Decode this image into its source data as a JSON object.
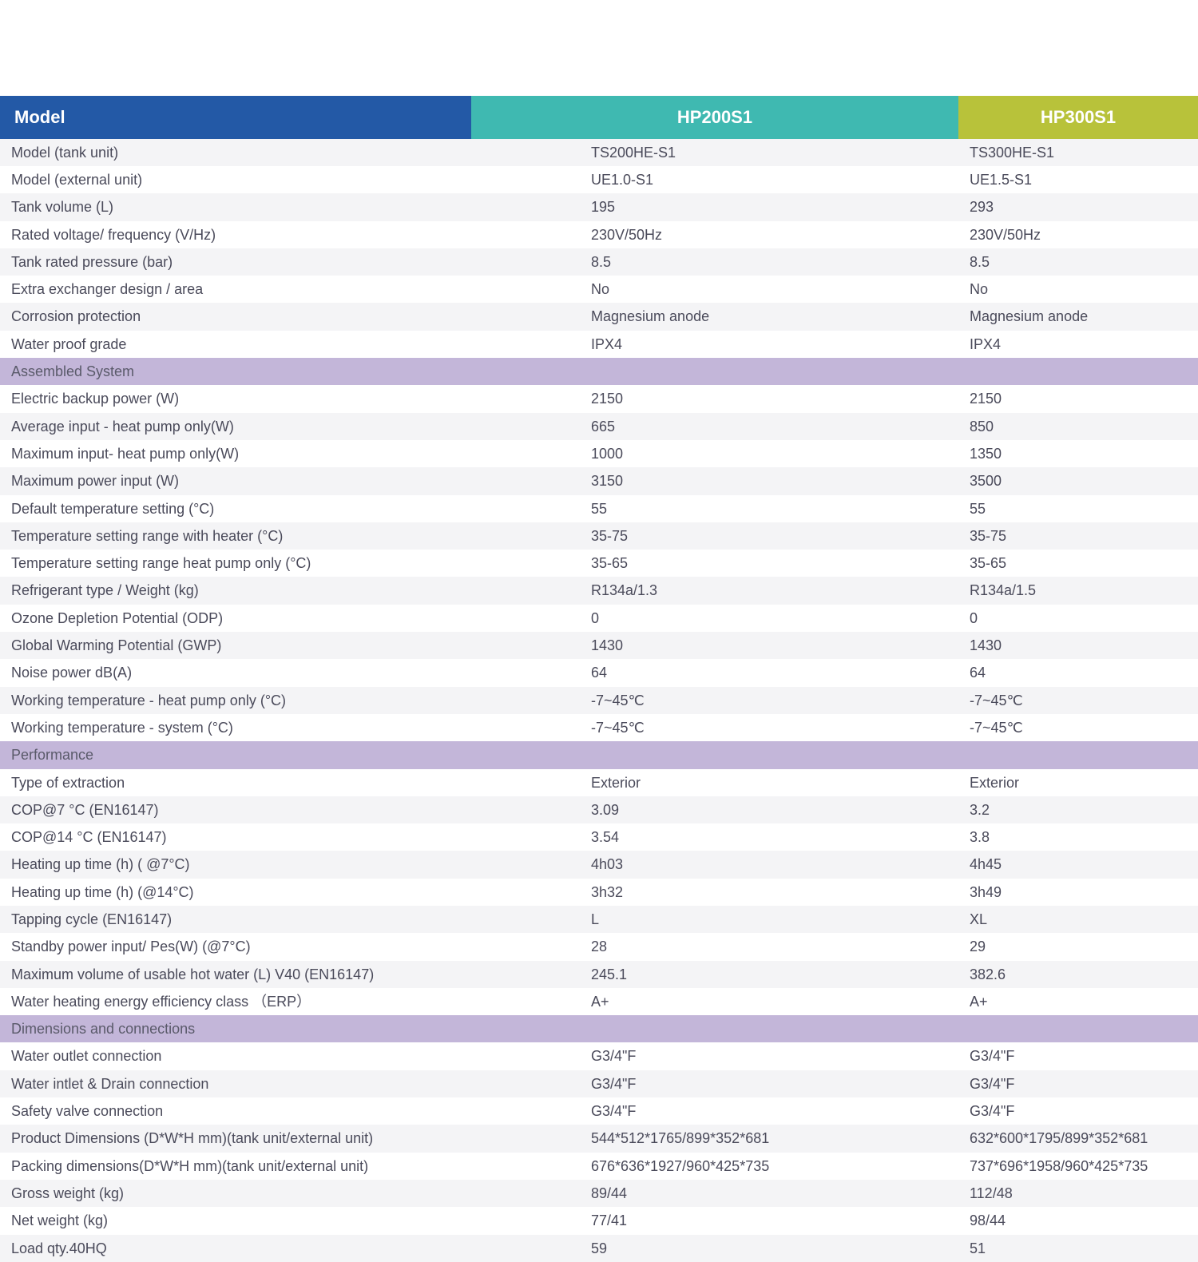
{
  "header": {
    "c0": "Model",
    "c1": "HP200S1",
    "c2": "HP300S1"
  },
  "colors": {
    "header0": "#2359a6",
    "header1": "#3fb9b1",
    "header2": "#b8c23a",
    "section": "#c3b6d9",
    "even": "#f4f4f6",
    "odd": "#ffffff",
    "text": "#4a4a5a"
  },
  "rows": [
    {
      "t": "d",
      "s": "even",
      "label": "Model (tank unit)",
      "v1": "TS200HE-S1",
      "v2": "TS300HE-S1"
    },
    {
      "t": "d",
      "s": "odd",
      "label": "Model (external unit)",
      "v1": "UE1.0-S1",
      "v2": "UE1.5-S1"
    },
    {
      "t": "d",
      "s": "even",
      "label": "Tank volume (L)",
      "v1": "195",
      "v2": "293"
    },
    {
      "t": "d",
      "s": "odd",
      "label": "Rated voltage/ frequency (V/Hz)",
      "v1": "230V/50Hz",
      "v2": "230V/50Hz"
    },
    {
      "t": "d",
      "s": "even",
      "label": "Tank rated pressure (bar)",
      "v1": "8.5",
      "v2": "8.5"
    },
    {
      "t": "d",
      "s": "odd",
      "label": "Extra exchanger design / area",
      "v1": "No",
      "v2": "No"
    },
    {
      "t": "d",
      "s": "even",
      "label": "Corrosion protection",
      "v1": "Magnesium anode",
      "v2": "Magnesium anode"
    },
    {
      "t": "d",
      "s": "odd",
      "label": "Water proof grade",
      "v1": "IPX4",
      "v2": "IPX4"
    },
    {
      "t": "s",
      "label": "Assembled System"
    },
    {
      "t": "d",
      "s": "odd",
      "label": "Electric backup power (W)",
      "v1": "2150",
      "v2": "2150"
    },
    {
      "t": "d",
      "s": "even",
      "label": "Average input - heat pump only(W)",
      "v1": "665",
      "v2": "850"
    },
    {
      "t": "d",
      "s": "odd",
      "label": "Maximum input- heat pump only(W)",
      "v1": "1000",
      "v2": "1350"
    },
    {
      "t": "d",
      "s": "even",
      "label": "Maximum power input  (W)",
      "v1": "3150",
      "v2": "3500"
    },
    {
      "t": "d",
      "s": "odd",
      "label": "Default temperature setting (°C)",
      "v1": "55",
      "v2": "55"
    },
    {
      "t": "d",
      "s": "even",
      "label": "Temperature setting range with heater (°C)",
      "v1": "35-75",
      "v2": "35-75"
    },
    {
      "t": "d",
      "s": "odd",
      "label": "Temperature setting range heat pump only (°C)",
      "v1": "35-65",
      "v2": "35-65"
    },
    {
      "t": "d",
      "s": "even",
      "label": "Refrigerant type / Weight (kg)",
      "v1": "R134a/1.3",
      "v2": "R134a/1.5"
    },
    {
      "t": "d",
      "s": "odd",
      "label": "Ozone Depletion Potential (ODP)",
      "v1": "0",
      "v2": "0"
    },
    {
      "t": "d",
      "s": "even",
      "label": "Global Warming Potential (GWP)",
      "v1": "1430",
      "v2": "1430"
    },
    {
      "t": "d",
      "s": "odd",
      "label": "Noise power dB(A)",
      "v1": "64",
      "v2": "64"
    },
    {
      "t": "d",
      "s": "even",
      "label": "Working temperature - heat pump only (°C)",
      "v1": "-7~45℃",
      "v2": "-7~45℃"
    },
    {
      "t": "d",
      "s": "odd",
      "label": "Working temperature - system (°C)",
      "v1": "-7~45℃",
      "v2": "-7~45℃"
    },
    {
      "t": "s",
      "label": "Performance"
    },
    {
      "t": "d",
      "s": "odd",
      "label": "Type of extraction",
      "v1": " Exterior",
      "v2": " Exterior"
    },
    {
      "t": "d",
      "s": "even",
      "label": "COP@7 °C  (EN16147)",
      "v1": "3.09",
      "v2": "3.2"
    },
    {
      "t": "d",
      "s": "odd",
      "label": "COP@14 °C (EN16147)",
      "v1": "3.54",
      "v2": "3.8"
    },
    {
      "t": "d",
      "s": "even",
      "label": "Heating up time  (h) ( @7°C)",
      "v1": "4h03",
      "v2": "4h45"
    },
    {
      "t": "d",
      "s": "odd",
      "label": "Heating up time  (h)  (@14°C)",
      "v1": "3h32",
      "v2": "3h49"
    },
    {
      "t": "d",
      "s": "even",
      "label": "Tapping cycle (EN16147)",
      "v1": "L",
      "v2": "XL"
    },
    {
      "t": "d",
      "s": "odd",
      "label": "Standby power input/ Pes(W)  (@7°C)",
      "v1": "28",
      "v2": "29"
    },
    {
      "t": "d",
      "s": "even",
      "label": "Maximum volume of usable hot water (L) V40  (EN16147)",
      "v1": "245.1",
      "v2": "382.6"
    },
    {
      "t": "d",
      "s": "odd",
      "label": "Water heating energy efficiency class （ERP）",
      "v1": "A+",
      "v2": "A+"
    },
    {
      "t": "s",
      "label": "Dimensions and connections"
    },
    {
      "t": "d",
      "s": "odd",
      "label": "Water outlet connection",
      "v1": "G3/4\"F",
      "v2": "G3/4\"F"
    },
    {
      "t": "d",
      "s": "even",
      "label": "Water intlet & Drain connection",
      "v1": "G3/4\"F",
      "v2": "G3/4\"F"
    },
    {
      "t": "d",
      "s": "odd",
      "label": "Safety valve connection",
      "v1": "G3/4\"F",
      "v2": "G3/4\"F"
    },
    {
      "t": "d",
      "s": "even",
      "label": "Product Dimensions (D*W*H mm)(tank unit/external unit)",
      "v1": "544*512*1765/899*352*681",
      "v2": "632*600*1795/899*352*681"
    },
    {
      "t": "d",
      "s": "odd",
      "label": "Packing dimensions(D*W*H mm)(tank unit/external unit)",
      "v1": "676*636*1927/960*425*735",
      "v2": "737*696*1958/960*425*735"
    },
    {
      "t": "d",
      "s": "even",
      "label": "Gross weight (kg)",
      "v1": "89/44",
      "v2": "112/48"
    },
    {
      "t": "d",
      "s": "odd",
      "label": "Net weight (kg)",
      "v1": "77/41",
      "v2": "98/44"
    },
    {
      "t": "d",
      "s": "even",
      "label": "Load qty.40HQ",
      "v1": "59",
      "v2": "51"
    }
  ]
}
